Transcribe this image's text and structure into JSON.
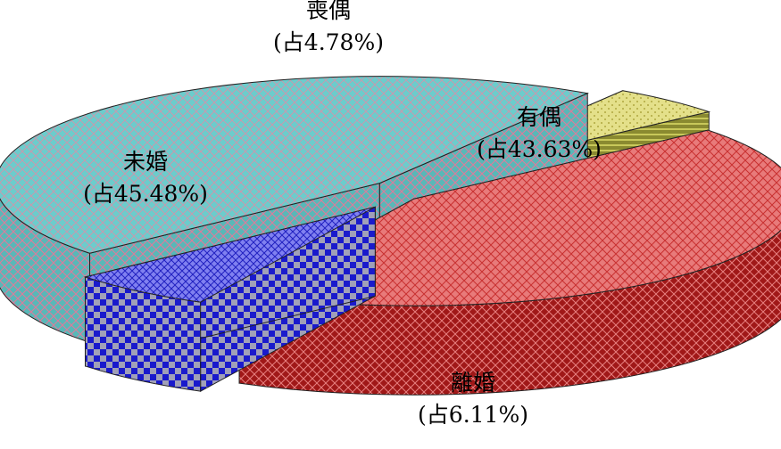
{
  "chart_data": {
    "type": "pie",
    "title": "",
    "slices": [
      {
        "name": "有偶",
        "percent": 43.63,
        "label": "(占43.63%)",
        "color": "#e06666",
        "pattern_color": "#c00000"
      },
      {
        "name": "離婚",
        "percent": 6.11,
        "label": "(占6.11%)",
        "color": "#6666ee",
        "pattern_color": "#1a1ab0"
      },
      {
        "name": "未婚",
        "percent": 45.48,
        "label": "(占45.48%)",
        "color": "#66cccc",
        "pattern_color": "#e07a9a"
      },
      {
        "name": "喪偶",
        "percent": 4.78,
        "label": "(占4.78%)",
        "color": "#e6e07a",
        "pattern_color": "#9aa02a"
      }
    ],
    "exploded": true,
    "style": "3d"
  }
}
